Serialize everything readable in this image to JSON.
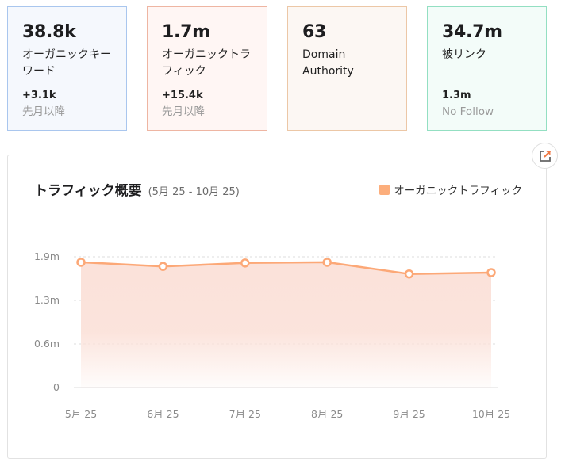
{
  "stats": {
    "keywords": {
      "value": "38.8k",
      "label": "オーガニックキーワード",
      "delta": "+3.1k",
      "sub": "先月以降"
    },
    "traffic": {
      "value": "1.7m",
      "label": "オーガニックトラフィック",
      "delta": "+15.4k",
      "sub": "先月以降"
    },
    "domain_authority": {
      "value": "63",
      "label": "Domain Authority"
    },
    "backlinks": {
      "value": "34.7m",
      "label": "被リンク",
      "delta": "1.3m",
      "sub": "No Follow"
    }
  },
  "chart_panel": {
    "title": "トラフィック概要",
    "range": "(5月 25 - 10月 25)",
    "legend_label": "オーガニックトラフィック",
    "export_icon": "external-link-icon"
  },
  "colors": {
    "line": "#fca877",
    "area_top": "#fbe2da",
    "keywords_border": "#a9c6ee",
    "traffic_border": "#eeb5a2",
    "da_border": "#ecc7a6",
    "backlinks_border": "#93dfc2"
  },
  "chart_data": {
    "type": "area",
    "title": "トラフィック概要",
    "subtitle": "(5月 25 - 10月 25)",
    "categories": [
      "5月 25",
      "6月 25",
      "7月 25",
      "8月 25",
      "9月 25",
      "10月 25"
    ],
    "series": [
      {
        "name": "オーガニックトラフィック",
        "values": [
          1.82,
          1.76,
          1.81,
          1.82,
          1.65,
          1.67
        ]
      }
    ],
    "yticks": [
      "0",
      "0.6m",
      "1.3m",
      "1.9m"
    ],
    "ytick_values": [
      0,
      0.63,
      1.27,
      1.9
    ],
    "ylim": [
      0,
      1.9
    ],
    "yunit": "m",
    "xlabel": "",
    "ylabel": "",
    "grid": true,
    "legend_position": "top-right"
  }
}
